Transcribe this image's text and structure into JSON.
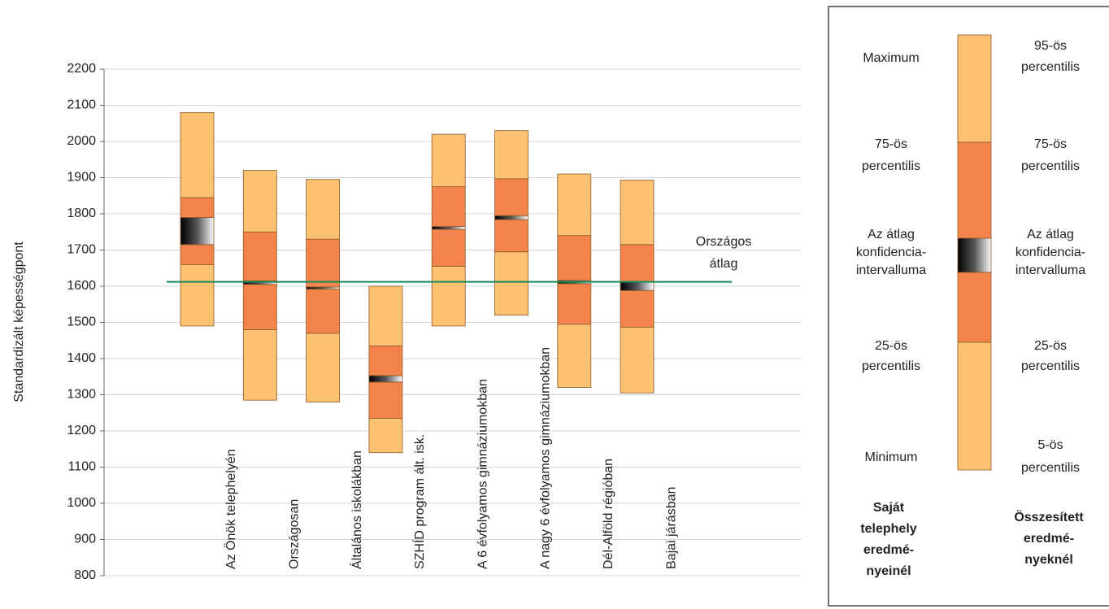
{
  "chart_data": {
    "type": "percentile-range",
    "y_label": "Standardizált képességpont",
    "categories": [
      "Az Önök telephelyén",
      "Országosan",
      "Általános iskolákban",
      "SZHÍD program ált. isk.",
      "A 6 évfolyamos gimnáziumokban",
      "A nagy 6 évfolyamos gimnáziumokban",
      "Dél-Alföld régióban",
      "Bajai járásban"
    ],
    "min": [
      1490,
      1285,
      1280,
      1140,
      1490,
      1520,
      1320,
      1305
    ],
    "p25": [
      1660,
      1480,
      1470,
      1235,
      1655,
      1695,
      1495,
      1487
    ],
    "ci_low": [
      1715,
      1605,
      1592,
      1335,
      1757,
      1784,
      1607,
      1588
    ],
    "ci_high": [
      1790,
      1615,
      1598,
      1353,
      1765,
      1795,
      1616,
      1612
    ],
    "p75": [
      1845,
      1750,
      1730,
      1435,
      1875,
      1897,
      1740,
      1715
    ],
    "max": [
      2080,
      1920,
      1895,
      1600,
      2020,
      2030,
      1910,
      1893
    ],
    "outer_color": "#fdc172",
    "inner_color": "#f4844c",
    "ylim": [
      800,
      2200
    ],
    "yticks": [
      800,
      900,
      1000,
      1100,
      1200,
      1300,
      1400,
      1500,
      1600,
      1700,
      1800,
      1900,
      2000,
      2100,
      2200
    ],
    "grid": true,
    "reference_line": {
      "label_lines": [
        "Országos",
        "átlag"
      ],
      "value": 1612,
      "color": "#1a8a5a"
    },
    "legend": {
      "left": [
        [
          "Maximum"
        ],
        [
          "75-ös",
          "percentilis"
        ],
        [
          "Az átlag",
          "konfidencia-",
          "intervalluma"
        ],
        [
          "25-ös",
          "percentilis"
        ],
        [
          "Minimum"
        ]
      ],
      "right": [
        [
          "95-ös",
          "percentilis"
        ],
        [
          "75-ös",
          "percentilis"
        ],
        [
          "Az átlag",
          "konfidencia-",
          "intervalluma"
        ],
        [
          "25-ös",
          "percentilis"
        ],
        [
          "5-ös",
          "percentilis"
        ]
      ],
      "left_caption": [
        "Saját",
        "telephely",
        "eredmé-",
        "nyeinél"
      ],
      "right_caption": [
        "Összesített",
        "eredmé-",
        "nyeknél"
      ]
    }
  }
}
